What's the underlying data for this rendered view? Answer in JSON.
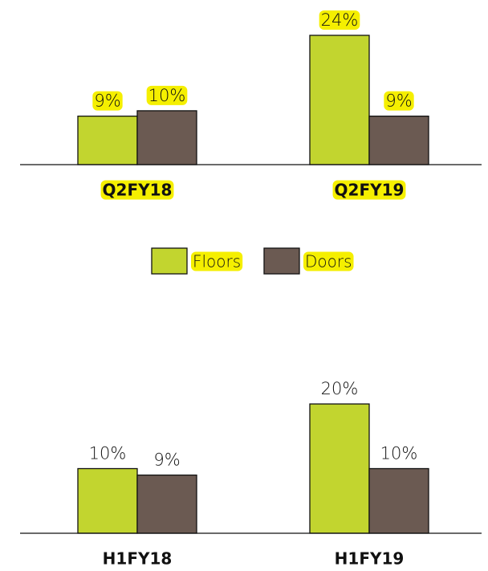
{
  "chart_data": [
    {
      "type": "bar",
      "categories": [
        "Q2FY18",
        "Q2FY19"
      ],
      "series": [
        {
          "name": "Floors",
          "color": "#c2d52f",
          "values": [
            9,
            24
          ],
          "value_labels": [
            "9%",
            "24%"
          ]
        },
        {
          "name": "Doors",
          "color": "#6b5a52",
          "values": [
            10,
            9
          ],
          "value_labels": [
            "10%",
            "9%"
          ]
        }
      ],
      "legend": "bottom",
      "label_highlight": "#f5ef00"
    },
    {
      "type": "bar",
      "categories": [
        "H1FY18",
        "H1FY19"
      ],
      "series": [
        {
          "name": "Floors",
          "color": "#c2d52f",
          "values": [
            10,
            20
          ],
          "value_labels": [
            "10%",
            "20%"
          ]
        },
        {
          "name": "Doors",
          "color": "#6b5a52",
          "values": [
            9,
            10
          ],
          "value_labels": [
            "9%",
            "10%"
          ]
        }
      ]
    }
  ]
}
